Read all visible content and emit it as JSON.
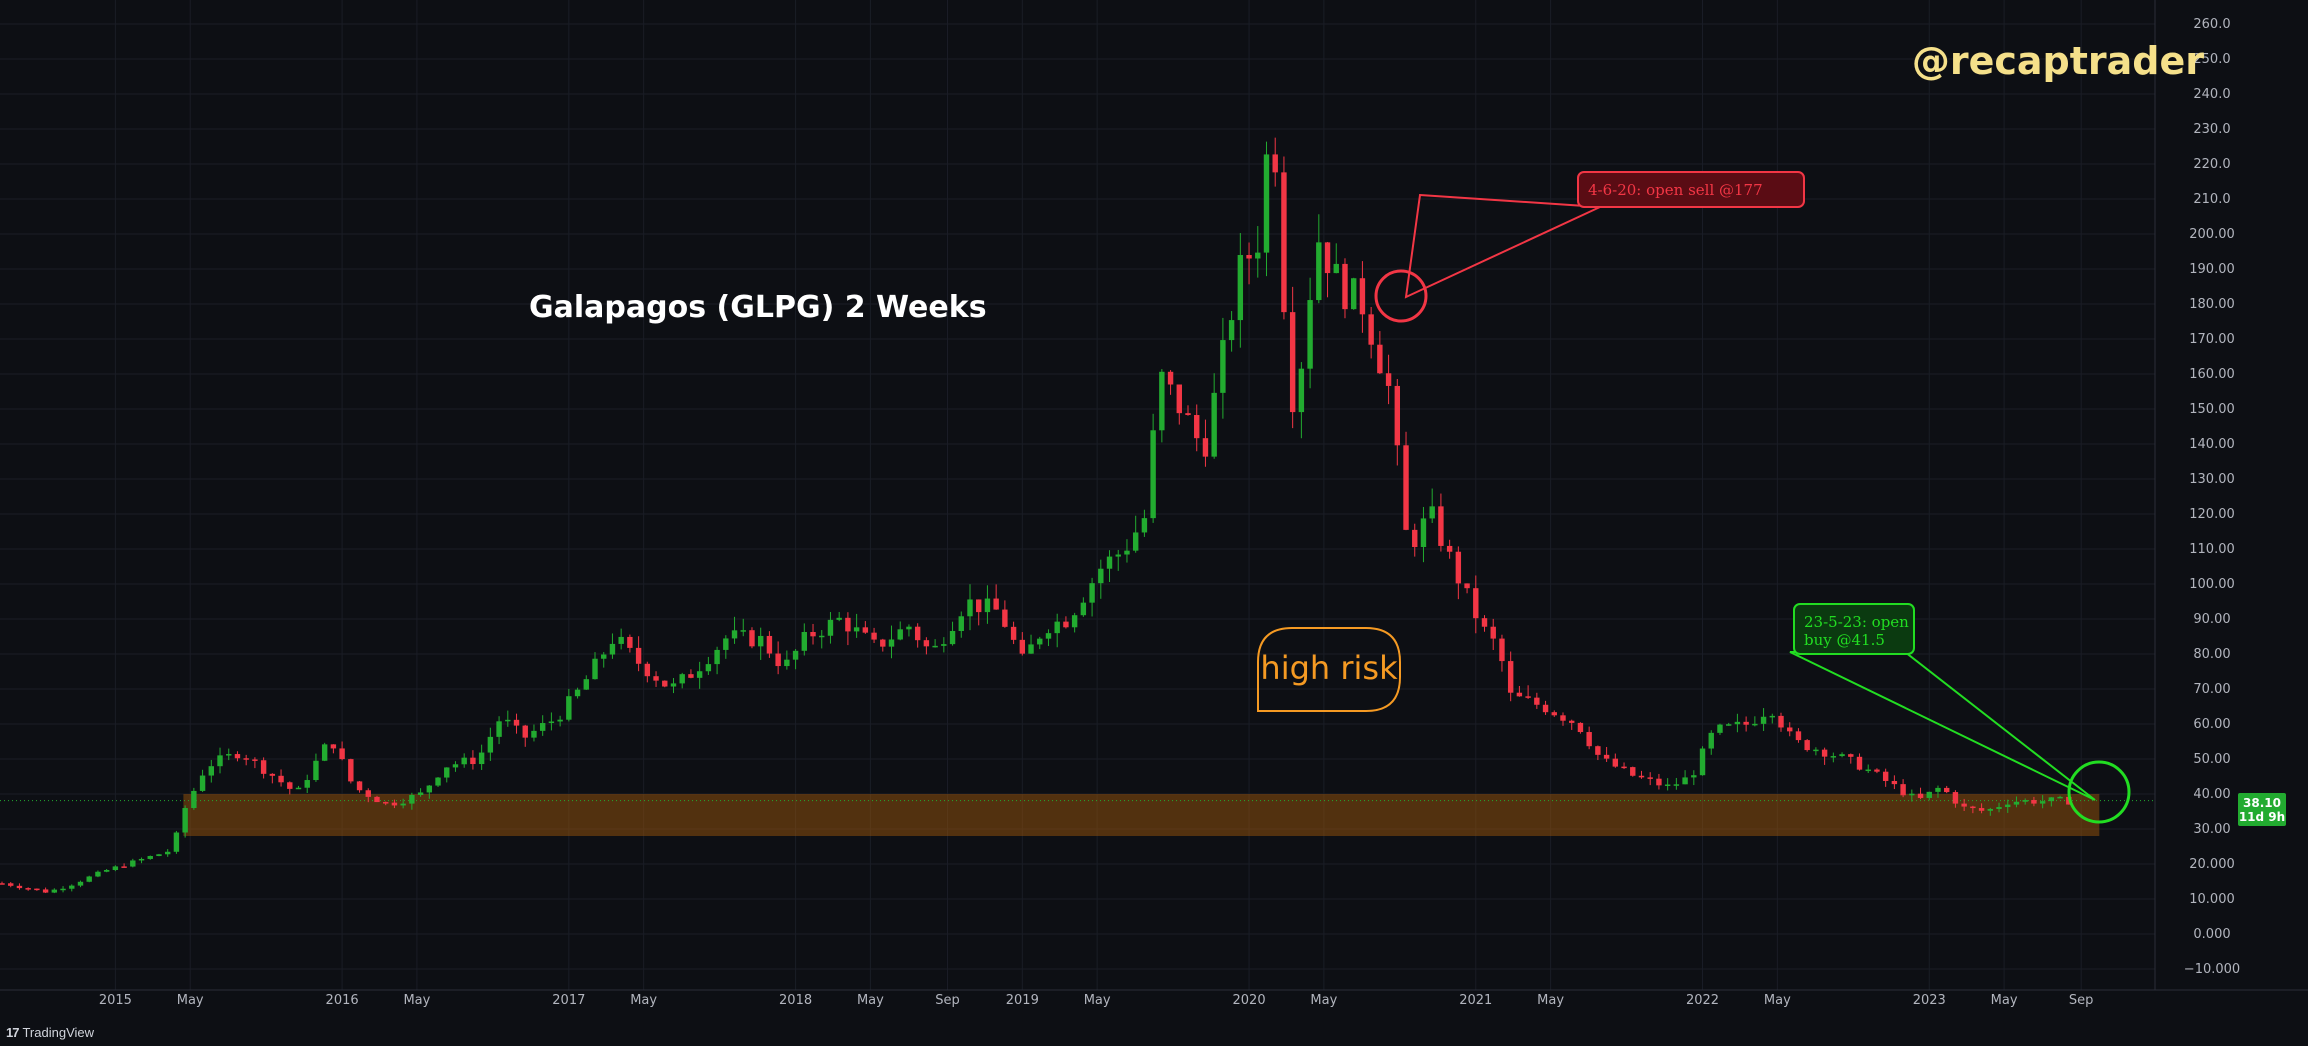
{
  "chart_data": {
    "type": "candlestick",
    "title": "Galapagos (GLPG) 2 Weeks",
    "y_ticks": [
      "260.0",
      "250.0",
      "240.0",
      "230.0",
      "220.0",
      "210.0",
      "200.00",
      "190.00",
      "180.00",
      "170.00",
      "160.00",
      "150.00",
      "140.00",
      "130.00",
      "120.00",
      "110.00",
      "100.00",
      "90.00",
      "80.00",
      "70.00",
      "60.00",
      "50.00",
      "40.00",
      "30.00",
      "20.000",
      "10.000",
      "0.000",
      "−10.000"
    ],
    "ylim": [
      -10,
      260
    ],
    "x_ticks": [
      {
        "label": "2015",
        "t": 2015.0
      },
      {
        "label": "May",
        "t": 2015.33
      },
      {
        "label": "2016",
        "t": 2016.0
      },
      {
        "label": "May",
        "t": 2016.33
      },
      {
        "label": "2017",
        "t": 2017.0
      },
      {
        "label": "May",
        "t": 2017.33
      },
      {
        "label": "2018",
        "t": 2018.0
      },
      {
        "label": "May",
        "t": 2018.33
      },
      {
        "label": "Sep",
        "t": 2018.67
      },
      {
        "label": "2019",
        "t": 2019.0
      },
      {
        "label": "May",
        "t": 2019.33
      },
      {
        "label": "2020",
        "t": 2020.0
      },
      {
        "label": "May",
        "t": 2020.33
      },
      {
        "label": "2021",
        "t": 2021.0
      },
      {
        "label": "May",
        "t": 2021.33
      },
      {
        "label": "2022",
        "t": 2022.0
      },
      {
        "label": "May",
        "t": 2022.33
      },
      {
        "label": "2023",
        "t": 2023.0
      },
      {
        "label": "May",
        "t": 2023.33
      },
      {
        "label": "Sep",
        "t": 2023.67
      }
    ],
    "xlim": [
      2014.5,
      2024.0
    ],
    "close_path": [
      [
        2014.5,
        14.5
      ],
      [
        2014.7,
        12.0
      ],
      [
        2014.8,
        14.0
      ],
      [
        2014.95,
        18.0
      ],
      [
        2015.1,
        21.0
      ],
      [
        2015.25,
        24.0
      ],
      [
        2015.3,
        35.0
      ],
      [
        2015.4,
        48.0
      ],
      [
        2015.55,
        52.0
      ],
      [
        2015.7,
        45.0
      ],
      [
        2015.8,
        40.0
      ],
      [
        2015.95,
        56.0
      ],
      [
        2016.05,
        42.0
      ],
      [
        2016.2,
        37.0
      ],
      [
        2016.35,
        40.0
      ],
      [
        2016.45,
        48.0
      ],
      [
        2016.6,
        50.0
      ],
      [
        2016.7,
        62.0
      ],
      [
        2016.8,
        56.0
      ],
      [
        2016.95,
        62.0
      ],
      [
        2017.05,
        70.0
      ],
      [
        2017.2,
        85.0
      ],
      [
        2017.3,
        78.0
      ],
      [
        2017.45,
        70.0
      ],
      [
        2017.55,
        75.0
      ],
      [
        2017.7,
        85.0
      ],
      [
        2017.85,
        84.0
      ],
      [
        2017.95,
        76.0
      ],
      [
        2018.05,
        85.0
      ],
      [
        2018.2,
        90.0
      ],
      [
        2018.35,
        82.0
      ],
      [
        2018.5,
        88.0
      ],
      [
        2018.6,
        80.0
      ],
      [
        2018.75,
        95.0
      ],
      [
        2018.9,
        92.0
      ],
      [
        2019.0,
        78.0
      ],
      [
        2019.1,
        88.0
      ],
      [
        2019.2,
        90.0
      ],
      [
        2019.35,
        105.0
      ],
      [
        2019.45,
        110.0
      ],
      [
        2019.55,
        120.0
      ],
      [
        2019.6,
        160.0
      ],
      [
        2019.7,
        150.0
      ],
      [
        2019.8,
        138.0
      ],
      [
        2019.9,
        170.0
      ],
      [
        2019.95,
        188.0
      ],
      [
        2020.05,
        200.0
      ],
      [
        2020.1,
        240.0
      ],
      [
        2020.15,
        185.0
      ],
      [
        2020.2,
        148.0
      ],
      [
        2020.3,
        200.0
      ],
      [
        2020.4,
        185.0
      ],
      [
        2020.5,
        180.0
      ],
      [
        2020.55,
        170.0
      ],
      [
        2020.62,
        155.0
      ],
      [
        2020.7,
        110.0
      ],
      [
        2020.8,
        120.0
      ],
      [
        2020.9,
        105.0
      ],
      [
        2020.97,
        95.0
      ],
      [
        2021.05,
        85.0
      ],
      [
        2021.1,
        82.0
      ],
      [
        2021.15,
        68.0
      ],
      [
        2021.3,
        65.0
      ],
      [
        2021.45,
        60.0
      ],
      [
        2021.55,
        50.0
      ],
      [
        2021.7,
        45.0
      ],
      [
        2021.85,
        42.0
      ],
      [
        2021.95,
        45.0
      ],
      [
        2022.05,
        58.0
      ],
      [
        2022.2,
        60.0
      ],
      [
        2022.3,
        65.0
      ],
      [
        2022.4,
        55.0
      ],
      [
        2022.55,
        52.0
      ],
      [
        2022.7,
        48.0
      ],
      [
        2022.8,
        44.0
      ],
      [
        2022.95,
        38.0
      ],
      [
        2023.05,
        42.0
      ],
      [
        2023.15,
        36.0
      ],
      [
        2023.25,
        35.0
      ],
      [
        2023.35,
        38.0
      ],
      [
        2023.45,
        38.0
      ],
      [
        2023.6,
        38.1
      ]
    ],
    "annotations": [
      {
        "id": "sell",
        "text": "4-6-20: open sell @177"
      },
      {
        "id": "buy",
        "text_lines": [
          "23-5-23: open",
          "buy @41.5"
        ]
      },
      {
        "id": "risk",
        "text": "high risk"
      }
    ],
    "support_zone": [
      28.0,
      40.0
    ],
    "last_price": {
      "value": "38.10",
      "countdown": "11d 9h"
    },
    "up_color": "#22ab30",
    "down_color": "#f23645",
    "grid": true
  },
  "watermark": "@recaptrader",
  "brand": {
    "mark": "17",
    "name": "TradingView"
  }
}
